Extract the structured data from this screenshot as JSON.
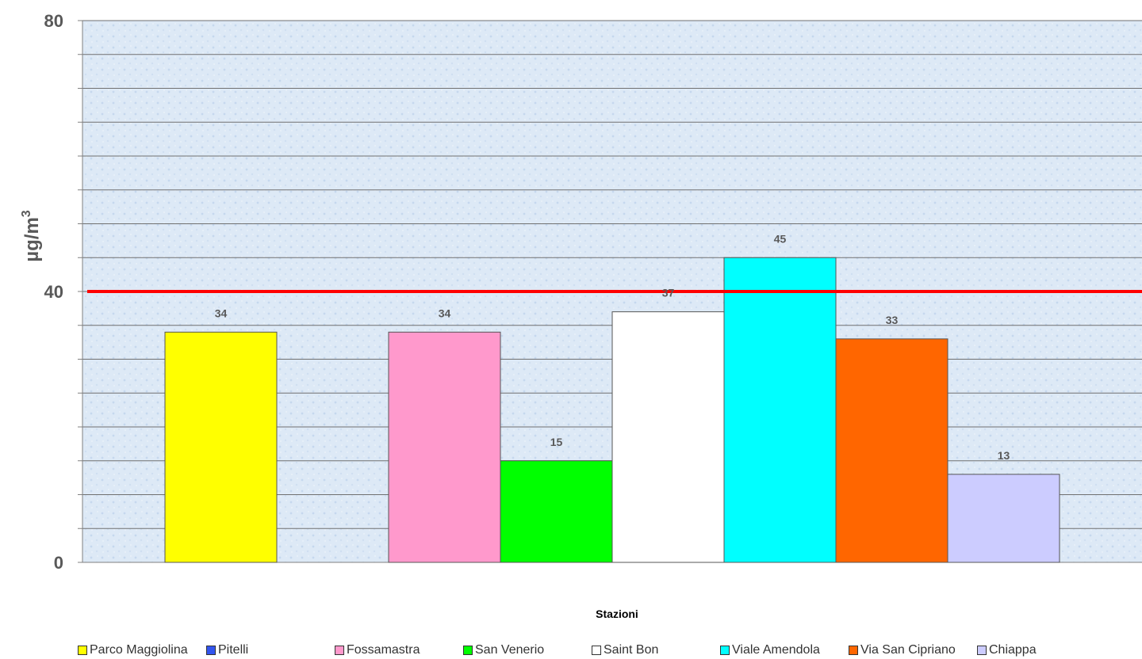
{
  "chart_data": {
    "type": "bar",
    "categories": [
      "Parco Maggiolina",
      "Pitelli",
      "Fossamastra",
      "San Venerio",
      "Saint Bon",
      "Viale Amendola",
      "Via San Cipriano",
      "Chiappa"
    ],
    "values": [
      34,
      null,
      34,
      15,
      37,
      45,
      33,
      13
    ],
    "data_labels": [
      "34",
      "",
      "34",
      "15",
      "37",
      "45",
      "33",
      "13"
    ],
    "colors": [
      "#ffff00",
      "#3355ee",
      "#ff99cc",
      "#00ff00",
      "#ffffff",
      "#00ffff",
      "#ff6600",
      "#ccccff"
    ],
    "xlabel": "Stazioni",
    "ylabel": "µg/m",
    "ylabel_sup": "3",
    "ylim": [
      0,
      80
    ],
    "yticks": [
      "0",
      "40",
      "80"
    ],
    "reference_line": {
      "value": 40,
      "color": "#ff0000"
    },
    "grid": true,
    "legend_position": "bottom",
    "background": "#dde9f6"
  }
}
